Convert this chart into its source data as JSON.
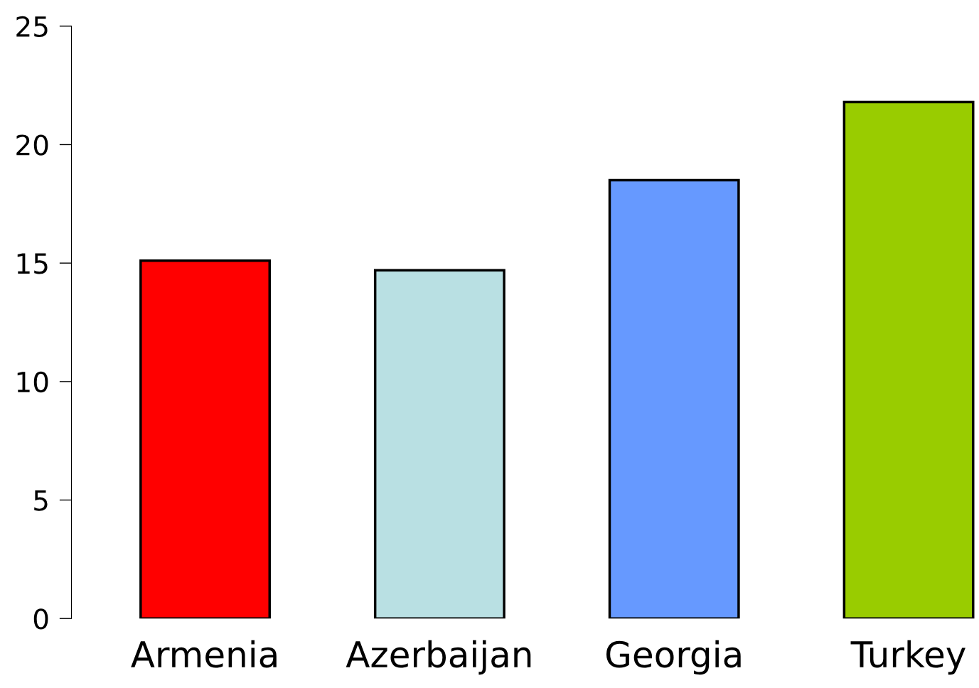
{
  "chart_data": {
    "type": "bar",
    "categories": [
      "Armenia",
      "Azerbaijan",
      "Georgia",
      "Turkey"
    ],
    "values": [
      15.1,
      14.7,
      18.5,
      21.8
    ],
    "colors": [
      "#ff0000",
      "#b9e0e3",
      "#6699ff",
      "#99cc00"
    ],
    "ylim": [
      0,
      25
    ],
    "yticks": [
      0,
      5,
      10,
      15,
      20,
      25
    ],
    "grid": false,
    "legend": false
  }
}
